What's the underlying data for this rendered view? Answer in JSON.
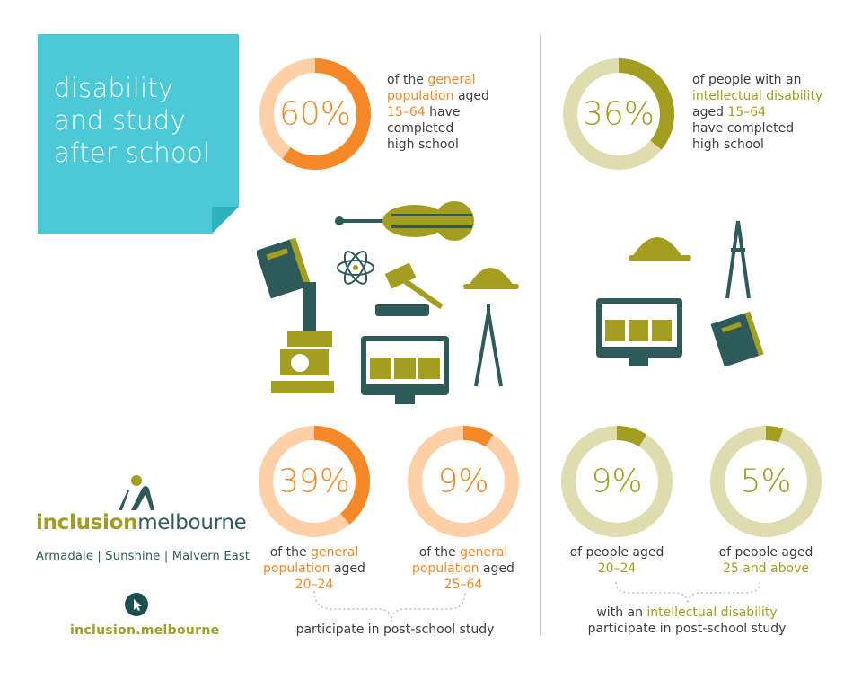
{
  "title": "disability and study after school",
  "title_lines": [
    "disability",
    "and study",
    "after school"
  ],
  "colors": {
    "teal": "#4cc9d6",
    "orange": "#f5892a",
    "orange_light": "#fdd0a8",
    "olive": "#a39e1f",
    "olive_light": "#dfdcb0",
    "dark_teal": "#2f5a5a"
  },
  "top_left": {
    "percent_label": "60%",
    "percent": 60,
    "text": {
      "l1a": "of the ",
      "l1b": "general",
      "l2a": "population",
      "l2b": " aged",
      "l3a": "15–64",
      "l3b": " have",
      "l4": "completed",
      "l5": "high school"
    }
  },
  "top_right": {
    "percent_label": "36%",
    "percent": 36,
    "text": {
      "l1": "of people with an",
      "l2": "intellectual disability",
      "l3a": "aged ",
      "l3b": "15–64",
      "l4": "have completed",
      "l5": "high school"
    }
  },
  "bottom": {
    "d1": {
      "percent_label": "39%",
      "percent": 39,
      "l1a": "of the ",
      "l1b": "general",
      "l2a": "population",
      "l2b": " aged",
      "l3": "20–24"
    },
    "d2": {
      "percent_label": "9%",
      "percent": 9,
      "l1a": "of the ",
      "l1b": "general",
      "l2a": "population",
      "l2b": " aged",
      "l3": "25–64"
    },
    "d3": {
      "percent_label": "9%",
      "percent": 9,
      "l1": "of people aged",
      "l2": "20–24"
    },
    "d4": {
      "percent_label": "5%",
      "percent": 5,
      "l1": "of people aged",
      "l2": "25 and above"
    },
    "left_caption": "participate in post-school study",
    "right_caption_a": "with an ",
    "right_caption_b": "intellectual disability",
    "right_caption_c": "participate in post-school study"
  },
  "icons_left": [
    "book-icon",
    "violin-icon",
    "atom-icon",
    "gavel-icon",
    "hard-hat-icon",
    "microscope-icon",
    "monitor-icon",
    "compass-icon"
  ],
  "icons_right": [
    "hard-hat-icon",
    "compass-icon",
    "monitor-icon",
    "book-icon"
  ],
  "logo": {
    "word_a": "inclusion",
    "word_b": "melbourne",
    "locations": "Armadale | Sunshine | Malvern East",
    "site": "inclusion.melbourne"
  }
}
